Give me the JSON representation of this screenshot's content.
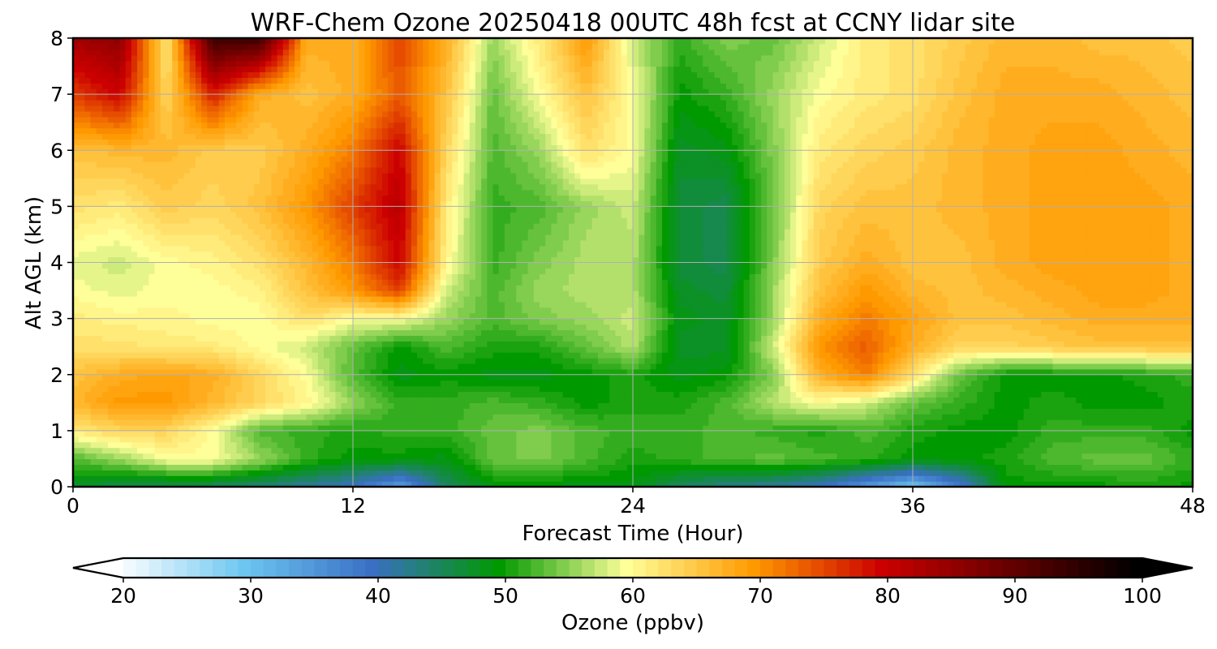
{
  "chart_data": {
    "type": "heatmap",
    "title": "WRF-Chem Ozone  20250418 00UTC 48h fcst at CCNY lidar site",
    "xlabel": "Forecast Time (Hour)",
    "ylabel": "Alt AGL (km)",
    "xlim": [
      0,
      48
    ],
    "ylim": [
      0,
      8
    ],
    "xticks": [
      0,
      12,
      24,
      36,
      48
    ],
    "yticks": [
      0,
      1,
      2,
      3,
      4,
      5,
      6,
      7,
      8
    ],
    "grid": true,
    "x": [
      0,
      2,
      4,
      6,
      8,
      10,
      12,
      14,
      16,
      18,
      20,
      22,
      24,
      26,
      28,
      30,
      32,
      34,
      36,
      38,
      40,
      42,
      44,
      46,
      48
    ],
    "y": [
      0,
      0.5,
      1,
      1.5,
      2,
      2.5,
      3,
      3.5,
      4,
      5,
      6,
      7,
      8
    ],
    "z": [
      [
        48,
        46,
        45,
        45,
        44,
        42,
        40,
        34,
        45,
        49,
        49,
        49,
        49,
        45,
        43,
        42,
        40,
        35,
        30,
        38,
        50,
        50,
        50,
        51,
        50
      ],
      [
        53,
        56,
        60,
        60,
        56,
        52,
        50,
        50,
        49,
        54,
        55,
        53,
        51,
        52,
        53,
        54,
        53,
        52,
        50,
        50,
        51,
        53,
        54,
        54,
        52
      ],
      [
        62,
        64,
        64,
        60,
        53,
        52,
        51,
        52,
        52,
        54,
        55,
        53,
        52,
        52,
        53,
        52,
        51,
        53,
        51,
        50,
        50,
        52,
        52,
        52,
        50
      ],
      [
        67,
        70,
        70,
        67,
        64,
        61,
        56,
        52,
        52,
        53,
        52,
        50,
        51,
        51,
        53,
        57,
        60,
        58,
        54,
        52,
        50,
        51,
        50,
        50,
        51
      ],
      [
        66,
        68,
        69,
        68,
        64,
        60,
        53,
        49,
        50,
        49,
        49,
        50,
        51,
        49,
        50,
        55,
        68,
        72,
        63,
        54,
        50,
        50,
        50,
        51,
        52
      ],
      [
        63,
        63,
        62,
        62,
        60,
        58,
        54,
        50,
        53,
        51,
        51,
        54,
        57,
        48,
        48,
        58,
        70,
        74,
        68,
        64,
        64,
        65,
        66,
        66,
        66
      ],
      [
        62,
        61,
        61,
        60,
        60,
        63,
        60,
        60,
        56,
        53,
        55,
        56,
        58,
        49,
        48,
        56,
        68,
        72,
        69,
        66,
        66,
        67,
        68,
        68,
        68
      ],
      [
        60,
        59,
        60,
        60,
        61,
        66,
        70,
        76,
        58,
        53,
        56,
        57,
        57,
        48,
        47,
        56,
        66,
        70,
        67,
        66,
        67,
        68,
        69,
        69,
        68
      ],
      [
        59,
        58,
        60,
        61,
        63,
        67,
        72,
        80,
        61,
        52,
        55,
        57,
        57,
        47,
        46,
        55,
        65,
        68,
        66,
        66,
        68,
        69,
        69,
        69,
        68
      ],
      [
        63,
        62,
        65,
        64,
        66,
        70,
        76,
        82,
        62,
        52,
        53,
        56,
        58,
        47,
        46,
        54,
        64,
        66,
        66,
        67,
        68,
        69,
        69,
        69,
        68
      ],
      [
        66,
        67,
        67,
        65,
        65,
        68,
        72,
        80,
        64,
        53,
        56,
        63,
        60,
        48,
        49,
        55,
        62,
        64,
        65,
        67,
        68,
        69,
        69,
        68,
        67
      ],
      [
        76,
        80,
        64,
        78,
        68,
        66,
        68,
        74,
        66,
        54,
        60,
        66,
        60,
        50,
        52,
        56,
        60,
        62,
        63,
        66,
        68,
        68,
        68,
        67,
        66
      ],
      [
        84,
        86,
        62,
        94,
        94,
        68,
        68,
        76,
        68,
        56,
        62,
        70,
        58,
        52,
        55,
        54,
        58,
        62,
        63,
        65,
        67,
        67,
        66,
        66,
        65
      ]
    ],
    "colorbar": {
      "label": "Ozone  (ppbv)",
      "min": 20,
      "max": 100,
      "ticks": [
        20,
        30,
        40,
        50,
        60,
        70,
        80,
        90,
        100
      ],
      "extend": "both",
      "colors": [
        "#ffffff",
        "#6cc6f0",
        "#3a6fc4",
        "#009900",
        "#ffff99",
        "#ff9900",
        "#cc0000",
        "#000000"
      ],
      "color_stops": [
        20,
        30,
        40,
        50,
        60,
        70,
        80,
        100
      ]
    }
  }
}
